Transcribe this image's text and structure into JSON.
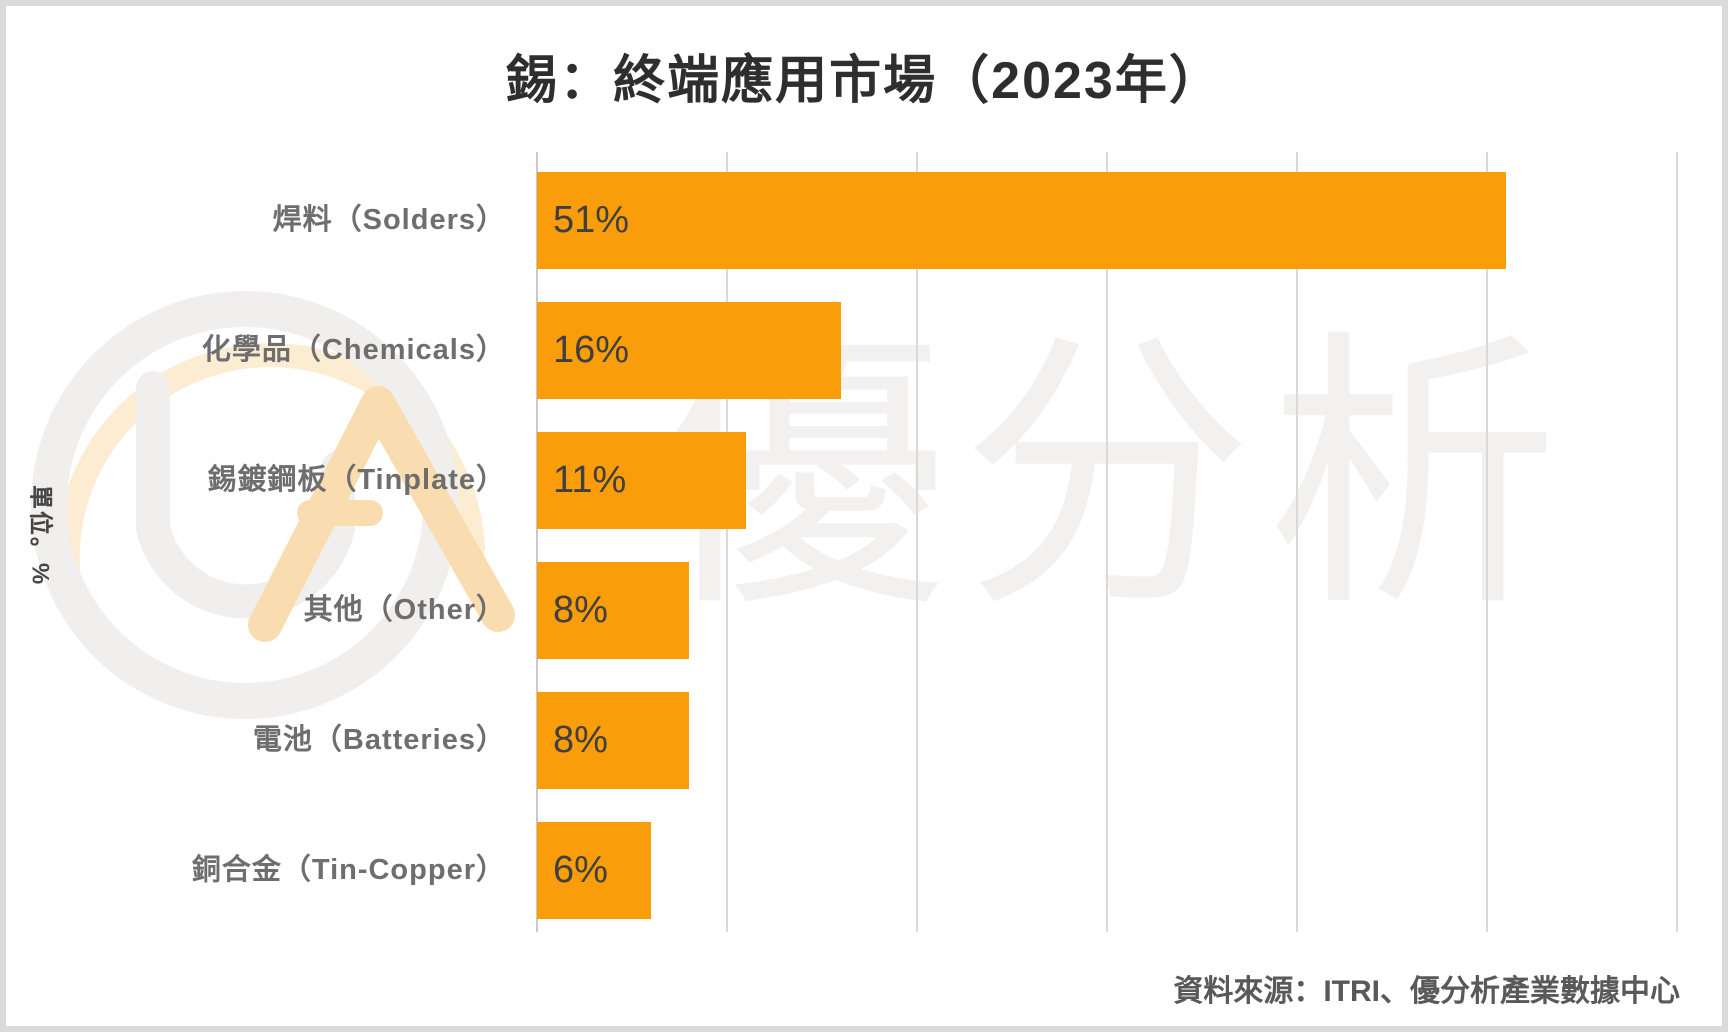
{
  "title": "錫：終端應用市場（2023年）",
  "unit_label": "單位。%",
  "source": "資料來源：ITRI、優分析產業數據中心",
  "watermark": {
    "text": "優分析",
    "logo": "UA-circle-logo"
  },
  "colors": {
    "bar": "#FA9D0A",
    "gridline": "#D9D9D9",
    "axis_line": "#C9C9C9",
    "title_text": "#2E2E2E",
    "category_text": "#6E6E6E",
    "value_text": "#3F3F3F",
    "source_text": "#595959",
    "frame": "#DBDBDB",
    "watermark_text": "#F2F1F0",
    "watermark_ring": "#F0EFED",
    "watermark_accent": "#F9DDB0"
  },
  "chart_data": {
    "type": "bar",
    "orientation": "horizontal",
    "title": "錫：終端應用市場（2023年）",
    "unit": "%",
    "categories": [
      "焊料（Solders）",
      "化學品（Chemicals）",
      "錫鍍鋼板（Tinplate）",
      "其他（Other）",
      "電池（Batteries）",
      "銅合金（Tin-Copper）"
    ],
    "values": [
      51,
      16,
      11,
      8,
      8,
      6
    ],
    "value_labels": [
      "51%",
      "16%",
      "11%",
      "8%",
      "8%",
      "6%"
    ],
    "xlim": [
      0,
      60
    ],
    "gridline_interval": 10,
    "grid": "vertical-only",
    "legend": "none",
    "bar_color": "#FA9D0A",
    "source": "資料來源：ITRI、優分析產業數據中心"
  }
}
